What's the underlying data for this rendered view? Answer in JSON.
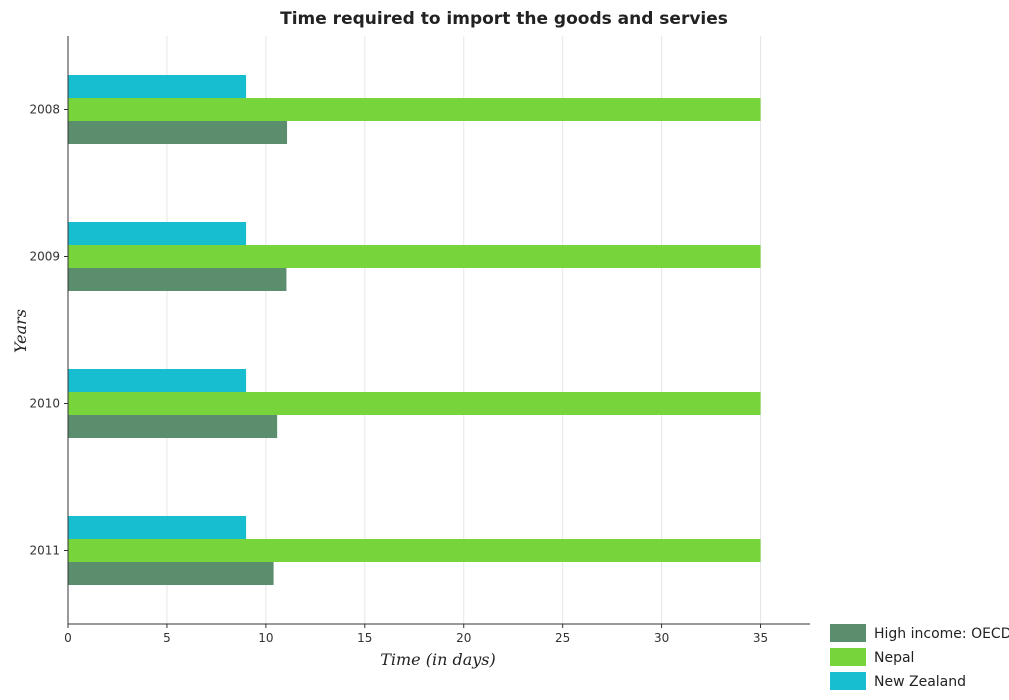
{
  "chart_data": {
    "type": "bar",
    "orientation": "horizontal",
    "title": "Time required to import the goods and servies",
    "xlabel": "Time (in days)",
    "ylabel": "Years",
    "categories": [
      "2008",
      "2009",
      "2010",
      "2011"
    ],
    "xlim": [
      0,
      37.5
    ],
    "xticks": [
      0,
      5,
      10,
      15,
      20,
      25,
      30,
      35
    ],
    "grid": true,
    "legend_position": "bottom-right",
    "series": [
      {
        "name": "High income: OECD",
        "color": "#5b8e6c",
        "values": [
          11.07,
          11.04,
          10.57,
          10.39
        ]
      },
      {
        "name": "Nepal",
        "color": "#77d43a",
        "values": [
          35,
          35,
          35,
          35
        ]
      },
      {
        "name": "New Zealand",
        "color": "#17becf",
        "values": [
          9,
          9,
          9,
          9
        ]
      }
    ]
  }
}
